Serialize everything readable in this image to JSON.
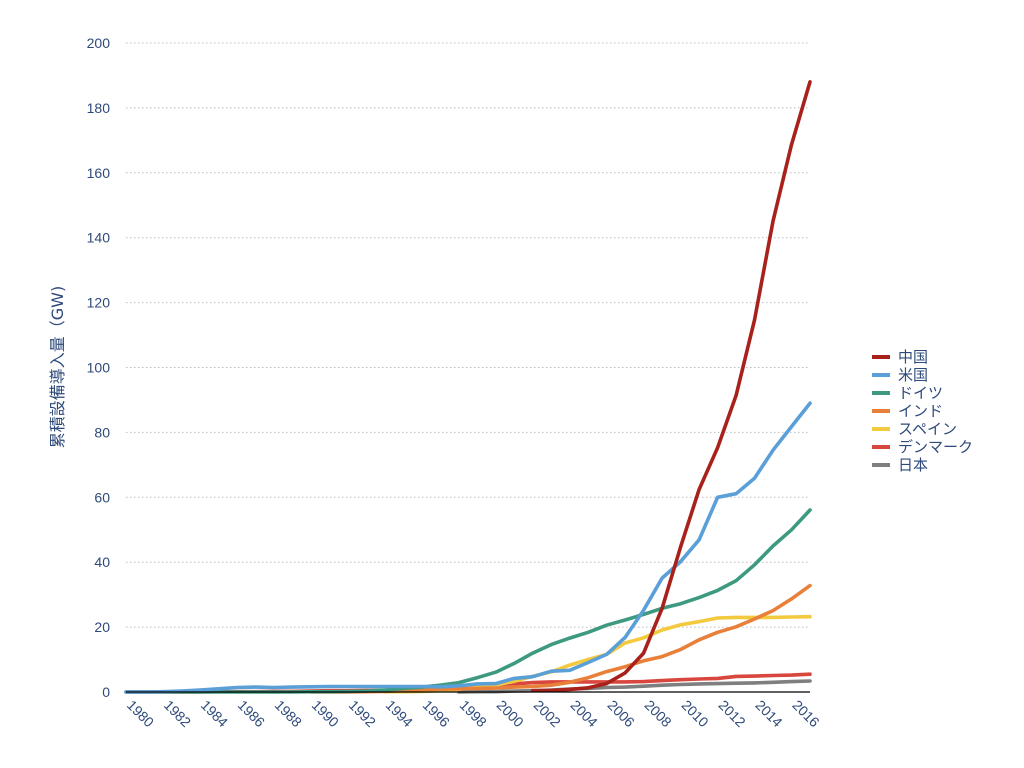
{
  "chart_data": {
    "type": "line",
    "title": "",
    "ylabel": "累積設備導入量（GW)",
    "xlabel": "",
    "xlim": [
      1980,
      2017
    ],
    "ylim": [
      0,
      200
    ],
    "y_ticks": [
      0,
      20,
      40,
      60,
      80,
      100,
      120,
      140,
      160,
      180,
      200
    ],
    "x_ticks": [
      1980,
      1982,
      1984,
      1986,
      1988,
      1990,
      1992,
      1994,
      1996,
      1998,
      2000,
      2002,
      2004,
      2006,
      2008,
      2010,
      2012,
      2014,
      2016
    ],
    "grid": true,
    "legend_position": "right",
    "series": [
      {
        "name": "中国",
        "color": "#a8221b",
        "x": [
          2002,
          2003,
          2004,
          2005,
          2006,
          2007,
          2008,
          2009,
          2010,
          2011,
          2012,
          2013,
          2014,
          2015,
          2016,
          2017
        ],
        "values": [
          0.4,
          0.5,
          0.8,
          1.3,
          2.6,
          5.9,
          12.0,
          25.8,
          44.7,
          62.4,
          75.3,
          91.4,
          114.6,
          145.1,
          168.7,
          188.0
        ]
      },
      {
        "name": "米国",
        "color": "#5a9fd8",
        "x": [
          1980,
          1981,
          1982,
          1983,
          1984,
          1985,
          1986,
          1987,
          1988,
          1989,
          1990,
          1991,
          1992,
          1993,
          1994,
          1995,
          1996,
          1997,
          1998,
          1999,
          2000,
          2001,
          2002,
          2003,
          2004,
          2005,
          2006,
          2007,
          2008,
          2009,
          2010,
          2011,
          2012,
          2013,
          2014,
          2015,
          2016,
          2017
        ],
        "values": [
          0.0,
          0.0,
          0.1,
          0.3,
          0.6,
          1.0,
          1.4,
          1.5,
          1.4,
          1.5,
          1.6,
          1.7,
          1.7,
          1.7,
          1.7,
          1.7,
          1.7,
          1.6,
          1.9,
          2.5,
          2.6,
          4.2,
          4.7,
          6.4,
          6.7,
          9.1,
          11.6,
          16.8,
          25.2,
          35.1,
          40.2,
          46.9,
          60.0,
          61.1,
          65.9,
          74.5,
          81.8,
          89.0
        ]
      },
      {
        "name": "ドイツ",
        "color": "#3d9a80",
        "x": [
          1980,
          1981,
          1982,
          1983,
          1984,
          1985,
          1986,
          1987,
          1988,
          1989,
          1990,
          1991,
          1992,
          1993,
          1994,
          1995,
          1996,
          1997,
          1998,
          1999,
          2000,
          2001,
          2002,
          2003,
          2004,
          2005,
          2006,
          2007,
          2008,
          2009,
          2010,
          2011,
          2012,
          2013,
          2014,
          2015,
          2016,
          2017
        ],
        "values": [
          0.0,
          0.0,
          0.0,
          0.0,
          0.0,
          0.0,
          0.0,
          0.0,
          0.0,
          0.0,
          0.1,
          0.1,
          0.2,
          0.3,
          0.6,
          1.1,
          1.5,
          2.1,
          2.9,
          4.4,
          6.1,
          8.8,
          12.0,
          14.6,
          16.6,
          18.4,
          20.6,
          22.2,
          23.9,
          25.8,
          27.2,
          29.1,
          31.3,
          34.3,
          39.2,
          45.0,
          50.0,
          56.1
        ]
      },
      {
        "name": "インド",
        "color": "#e8803a",
        "x": [
          1990,
          1991,
          1992,
          1993,
          1994,
          1995,
          1996,
          1997,
          1998,
          1999,
          2000,
          2001,
          2002,
          2003,
          2004,
          2005,
          2006,
          2007,
          2008,
          2009,
          2010,
          2011,
          2012,
          2013,
          2014,
          2015,
          2016,
          2017
        ],
        "values": [
          0.0,
          0.0,
          0.0,
          0.1,
          0.2,
          0.5,
          0.8,
          0.9,
          1.0,
          1.1,
          1.2,
          1.5,
          1.7,
          2.1,
          3.0,
          4.4,
          6.3,
          7.8,
          9.6,
          10.9,
          13.1,
          16.1,
          18.4,
          20.1,
          22.5,
          25.1,
          28.7,
          32.8
        ]
      },
      {
        "name": "スペイン",
        "color": "#f3c93e",
        "x": [
          1994,
          1995,
          1996,
          1997,
          1998,
          1999,
          2000,
          2001,
          2002,
          2003,
          2004,
          2005,
          2006,
          2007,
          2008,
          2009,
          2010,
          2011,
          2012,
          2013,
          2014,
          2015,
          2016,
          2017
        ],
        "values": [
          0.1,
          0.1,
          0.2,
          0.4,
          0.8,
          1.5,
          2.2,
          3.3,
          4.8,
          6.2,
          8.3,
          10.0,
          11.6,
          15.1,
          16.7,
          19.1,
          20.7,
          21.7,
          22.8,
          23.0,
          23.0,
          23.0,
          23.1,
          23.2
        ]
      },
      {
        "name": "デンマーク",
        "color": "#d9463e",
        "x": [
          1980,
          1981,
          1982,
          1983,
          1984,
          1985,
          1986,
          1987,
          1988,
          1989,
          1990,
          1991,
          1992,
          1993,
          1994,
          1995,
          1996,
          1997,
          1998,
          1999,
          2000,
          2001,
          2002,
          2003,
          2004,
          2005,
          2006,
          2007,
          2008,
          2009,
          2010,
          2011,
          2012,
          2013,
          2014,
          2015,
          2016,
          2017
        ],
        "values": [
          0.0,
          0.0,
          0.0,
          0.0,
          0.0,
          0.1,
          0.1,
          0.1,
          0.2,
          0.2,
          0.3,
          0.4,
          0.4,
          0.5,
          0.5,
          0.6,
          0.8,
          1.1,
          1.4,
          1.7,
          2.4,
          2.5,
          2.9,
          3.1,
          3.1,
          3.1,
          3.1,
          3.1,
          3.2,
          3.5,
          3.8,
          4.0,
          4.2,
          4.8,
          4.9,
          5.1,
          5.2,
          5.5
        ]
      },
      {
        "name": "日本",
        "color": "#7f7f7f",
        "x": [
          1998,
          1999,
          2000,
          2001,
          2002,
          2003,
          2004,
          2005,
          2006,
          2007,
          2008,
          2009,
          2010,
          2011,
          2012,
          2013,
          2014,
          2015,
          2016,
          2017
        ],
        "values": [
          0.0,
          0.1,
          0.1,
          0.3,
          0.4,
          0.6,
          0.9,
          1.1,
          1.4,
          1.5,
          1.8,
          2.1,
          2.3,
          2.5,
          2.6,
          2.7,
          2.8,
          3.0,
          3.2,
          3.4
        ]
      }
    ]
  }
}
